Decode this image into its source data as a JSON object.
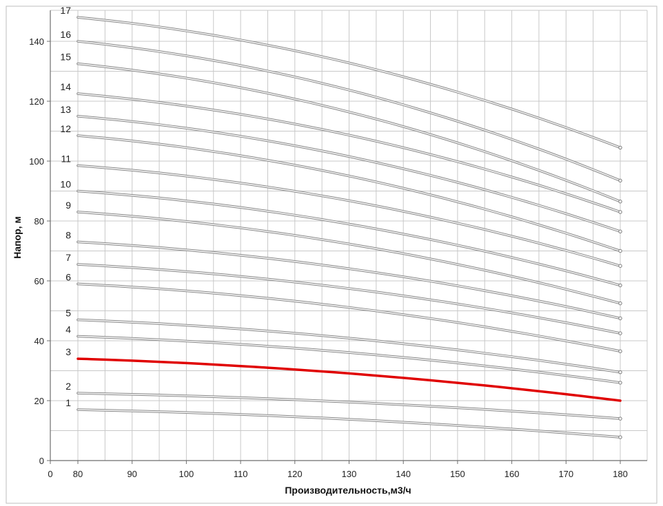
{
  "chart_data": {
    "type": "line",
    "title": "",
    "xlabel": "Производительность,м3/ч",
    "ylabel": "Напор, м",
    "xlim": [
      0,
      180
    ],
    "ylim": [
      0,
      140
    ],
    "x_ticks": [
      "0",
      "80",
      "90",
      "100",
      "110",
      "120",
      "130",
      "140",
      "150",
      "160",
      "170",
      "180"
    ],
    "y_ticks": [
      0,
      20,
      40,
      60,
      80,
      100,
      120,
      140
    ],
    "grid": true,
    "legend": "none",
    "curve_color": "#b9b9b9",
    "highlight_color": "#e00000",
    "series": [
      {
        "name": "1",
        "x": [
          80,
          180
        ],
        "y": [
          17.0,
          7.8
        ]
      },
      {
        "name": "2",
        "x": [
          80,
          180
        ],
        "y": [
          22.5,
          14.0
        ]
      },
      {
        "name": "3",
        "x": [
          80,
          180
        ],
        "y": [
          34.0,
          20.0
        ],
        "highlight": true
      },
      {
        "name": "4",
        "x": [
          80,
          180
        ],
        "y": [
          41.5,
          26.0
        ]
      },
      {
        "name": "5",
        "x": [
          80,
          180
        ],
        "y": [
          47.0,
          29.5
        ]
      },
      {
        "name": "6",
        "x": [
          80,
          180
        ],
        "y": [
          59.0,
          36.5
        ]
      },
      {
        "name": "7",
        "x": [
          80,
          180
        ],
        "y": [
          65.5,
          42.5
        ]
      },
      {
        "name": "8",
        "x": [
          80,
          180
        ],
        "y": [
          73.0,
          47.5
        ]
      },
      {
        "name": "9",
        "x": [
          80,
          180
        ],
        "y": [
          83.0,
          52.5
        ]
      },
      {
        "name": "10",
        "x": [
          80,
          180
        ],
        "y": [
          90.0,
          58.5
        ]
      },
      {
        "name": "11",
        "x": [
          80,
          180
        ],
        "y": [
          98.5,
          65.0
        ]
      },
      {
        "name": "12",
        "x": [
          80,
          180
        ],
        "y": [
          108.5,
          70.0
        ]
      },
      {
        "name": "13",
        "x": [
          80,
          180
        ],
        "y": [
          115.0,
          76.5
        ]
      },
      {
        "name": "14",
        "x": [
          80,
          180
        ],
        "y": [
          122.5,
          83.0
        ]
      },
      {
        "name": "15",
        "x": [
          80,
          180
        ],
        "y": [
          132.5,
          86.5
        ]
      },
      {
        "name": "16",
        "x": [
          80,
          180
        ],
        "y": [
          140.0,
          93.5
        ]
      },
      {
        "name": "17",
        "x": [
          80,
          180
        ],
        "y": [
          148.0,
          104.5
        ]
      }
    ]
  }
}
